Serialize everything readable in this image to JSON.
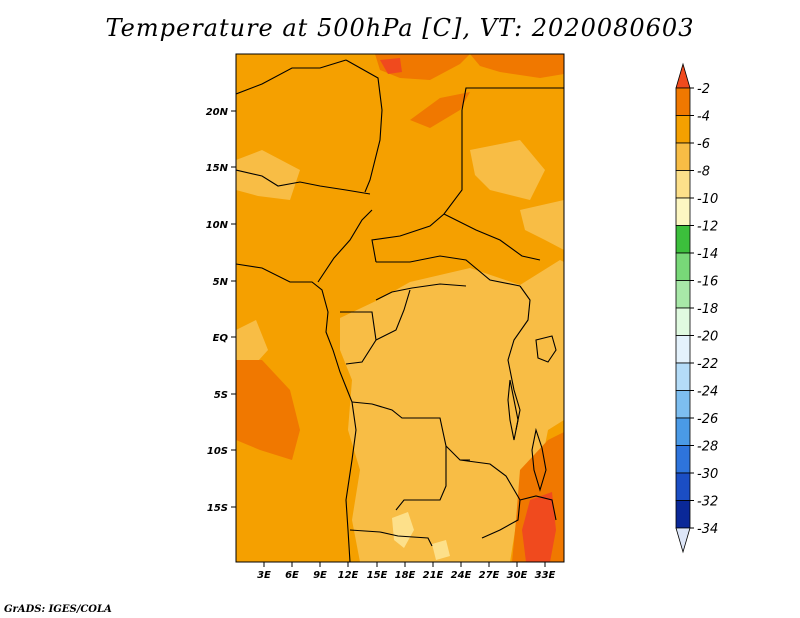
{
  "title": "Temperature at 500hPa [C], VT: 2020080603",
  "credit": "GrADS: IGES/COLA",
  "lat_ticks": [
    "20N",
    "15N",
    "10N",
    "5N",
    "EQ",
    "5S",
    "10S",
    "15S"
  ],
  "lon_ticks": [
    "3E",
    "6E",
    "9E",
    "12E",
    "15E",
    "18E",
    "21E",
    "24E",
    "27E",
    "30E",
    "33E"
  ],
  "colorbar": {
    "labels": [
      "-2",
      "-4",
      "-6",
      "-8",
      "-10",
      "-12",
      "-14",
      "-16",
      "-18",
      "-20",
      "-22",
      "-24",
      "-26",
      "-28",
      "-30",
      "-32",
      "-34"
    ],
    "colors": [
      "#f04a1e",
      "#f07800",
      "#f5a000",
      "#f8bd45",
      "#fde08a",
      "#fdf7c2",
      "#3cbf3c",
      "#78d878",
      "#a8e8a8",
      "#e0fae0",
      "#e4f2fc",
      "#b4dcf8",
      "#7dbef0",
      "#4a9ae6",
      "#2e74dc",
      "#1b4ec4",
      "#0a2898",
      "#061060"
    ],
    "over_color": "#f04a1e",
    "under_color": "#dde6f8"
  },
  "chart_data": {
    "type": "heatmap",
    "title": "Temperature at 500hPa [C], VT: 2020080603",
    "units": "C",
    "lon_range": [
      0,
      35
    ],
    "lat_range": [
      -20,
      25
    ],
    "dominant_value_range": [
      -4,
      -8
    ],
    "warm_regions": "around -3 to -4 C off the Angolan coast and in the southeast near 33E",
    "cool_regions": "around -6 to -7 C over the Congo Basin and southern Africa"
  }
}
